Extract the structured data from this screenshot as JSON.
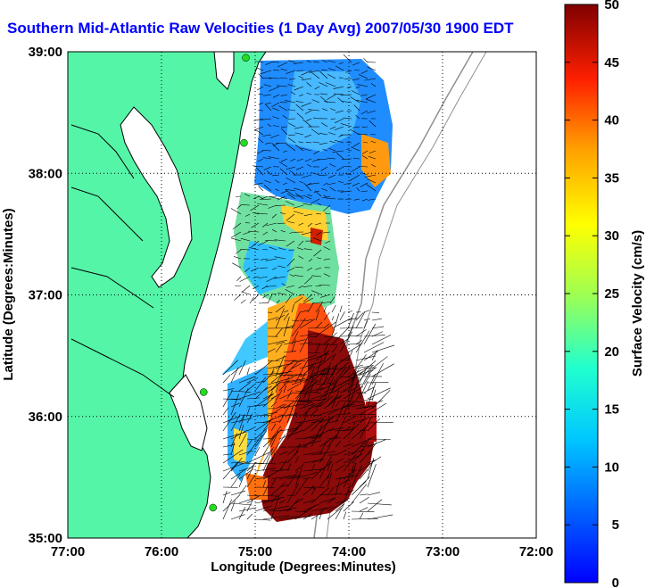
{
  "title": "Southern Mid-Atlantic Raw Velocities (1 Day Avg) 2007/05/30 1900 EDT",
  "x_axis": {
    "label": "Longitude (Degrees:Minutes)",
    "ticks": [
      "77:00",
      "76:00",
      "75:00",
      "74:00",
      "73:00",
      "72:00"
    ],
    "range": [
      -77,
      -72
    ]
  },
  "y_axis": {
    "label": "Latitude (Degrees:Minutes)",
    "ticks": [
      "39:00",
      "38:00",
      "37:00",
      "36:00",
      "35:00"
    ],
    "range": [
      35,
      39
    ]
  },
  "colorbar": {
    "label": "Surface Velocity (cm/s)",
    "ticks": [
      "50",
      "45",
      "40",
      "35",
      "30",
      "25",
      "20",
      "15",
      "10",
      "5",
      "0"
    ],
    "range": [
      0,
      50
    ],
    "colormap": "jet"
  },
  "colors": {
    "land": "#55f5a8",
    "coast": "#000000",
    "station": "#22dd22",
    "bathymetry": "#909090",
    "title": "#0000ff"
  },
  "stations": [
    {
      "lon": -75.1,
      "lat": 38.95
    },
    {
      "lon": -75.12,
      "lat": 38.25
    },
    {
      "lon": -75.55,
      "lat": 36.2
    },
    {
      "lon": -75.45,
      "lat": 35.25
    }
  ]
}
